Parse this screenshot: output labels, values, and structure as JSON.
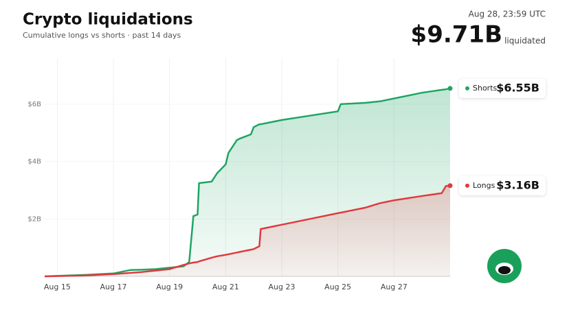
{
  "chart_data": {
    "type": "area-line",
    "title": "Crypto liquidations",
    "subtitle": "Cumulative longs vs shorts · past 14 days",
    "timestamp": "Aug 28, 23:59 UTC",
    "total_label": "$9.71B",
    "total_caption": "liquidated",
    "x": [
      14.55,
      16,
      17,
      17.6,
      18,
      18.5,
      19,
      19.5,
      19.7,
      19.85,
      20,
      20.05,
      20.5,
      20.7,
      21,
      21.1,
      21.4,
      21.5,
      21.9,
      22,
      22.2,
      22.25,
      22.5,
      23,
      24,
      25,
      25.1,
      26,
      26.5,
      27,
      28,
      28.7,
      28.85,
      29
    ],
    "series": [
      {
        "name": "Shorts",
        "color": "#1fa463",
        "end_label": "$6.55B",
        "values": [
          0,
          0.05,
          0.1,
          0.22,
          0.23,
          0.25,
          0.3,
          0.35,
          0.5,
          2.1,
          2.15,
          3.25,
          3.3,
          3.6,
          3.9,
          4.3,
          4.75,
          4.8,
          4.95,
          5.2,
          5.3,
          5.3,
          5.35,
          5.45,
          5.6,
          5.75,
          6.0,
          6.05,
          6.1,
          6.2,
          6.4,
          6.5,
          6.52,
          6.55
        ]
      },
      {
        "name": "Longs",
        "color": "#e0393e",
        "end_label": "$3.16B",
        "values": [
          0,
          0.03,
          0.08,
          0.12,
          0.15,
          0.2,
          0.25,
          0.4,
          0.45,
          0.48,
          0.5,
          0.52,
          0.65,
          0.7,
          0.75,
          0.77,
          0.83,
          0.85,
          0.93,
          0.95,
          1.05,
          1.65,
          1.7,
          1.8,
          2.0,
          2.2,
          2.22,
          2.4,
          2.55,
          2.65,
          2.8,
          2.9,
          3.15,
          3.16
        ]
      }
    ],
    "xlim": [
      14.55,
      29
    ],
    "xticks": [
      {
        "value": 15,
        "label": "Aug 15"
      },
      {
        "value": 17,
        "label": "Aug 17"
      },
      {
        "value": 19,
        "label": "Aug 19"
      },
      {
        "value": 21,
        "label": "Aug 21"
      },
      {
        "value": 23,
        "label": "Aug 23"
      },
      {
        "value": 25,
        "label": "Aug 25"
      },
      {
        "value": 27,
        "label": "Aug 27"
      }
    ],
    "ylim": [
      0,
      7.6
    ],
    "yticks": [
      {
        "value": 2,
        "label": "$2B"
      },
      {
        "value": 4,
        "label": "$4B"
      },
      {
        "value": 6,
        "label": "$6B"
      }
    ],
    "grid": true
  }
}
